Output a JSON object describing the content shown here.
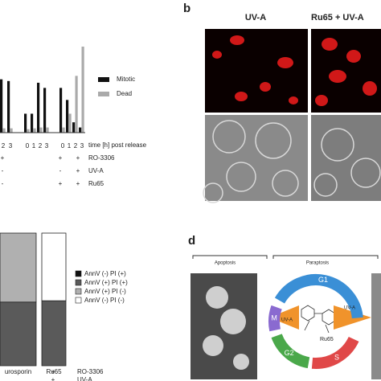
{
  "panel_a": {
    "ylim": [
      0,
      100
    ],
    "series": [
      {
        "name": "Mitotic",
        "color": "#111111",
        "values": [
          62,
          60,
          22,
          22,
          58,
          52,
          52,
          38,
          12,
          6
        ]
      },
      {
        "name": "Dead",
        "color": "#aaaaaa",
        "values": [
          5,
          5,
          4,
          5,
          6,
          6,
          6,
          22,
          66,
          100
        ]
      }
    ],
    "timepoints": [
      "2",
      "3",
      "0",
      "1",
      "2",
      "3",
      "0",
      "1",
      "2",
      "3"
    ],
    "time_label": "time [h] post release",
    "conditions": [
      {
        "name": "RO-3306",
        "cells": [
          "+",
          "+",
          "+"
        ]
      },
      {
        "name": "UV-A",
        "cells": [
          "-",
          "-",
          "+"
        ]
      },
      {
        "name": "Ru65",
        "cells": [
          "-",
          "+",
          "+"
        ]
      }
    ]
  },
  "panel_b": {
    "letter": "b",
    "columns": [
      "UV-A",
      "Ru65 + UV-A"
    ]
  },
  "panel_c": {
    "ylim": [
      0,
      100
    ],
    "categories": [
      "urosporin",
      "Ru65"
    ],
    "series": [
      {
        "name": "AnnV (-) PI (+)",
        "color": "#111111",
        "values": [
          0,
          0
        ]
      },
      {
        "name": "AnnV (+) PI (+)",
        "color": "#5a5a5a",
        "values": [
          48,
          49
        ]
      },
      {
        "name": "AnnV (+) PI (-)",
        "color": "#b0b0b0",
        "values": [
          52,
          0
        ]
      },
      {
        "name": "AnnV (-) PI (-)",
        "color": "#ffffff",
        "values": [
          0,
          51
        ]
      }
    ],
    "conditions": [
      {
        "name": "RO-3306",
        "cell": "+"
      },
      {
        "name": "UV-A",
        "cell": "+"
      }
    ]
  },
  "panel_d": {
    "letter": "d",
    "apoptosis": "Apoptosis",
    "paraptosis": "Paraptosis",
    "phases": [
      "G1",
      "S",
      "G2",
      "M"
    ],
    "uva": [
      "UV-A",
      "UV-A"
    ],
    "compound": "Ru65"
  }
}
